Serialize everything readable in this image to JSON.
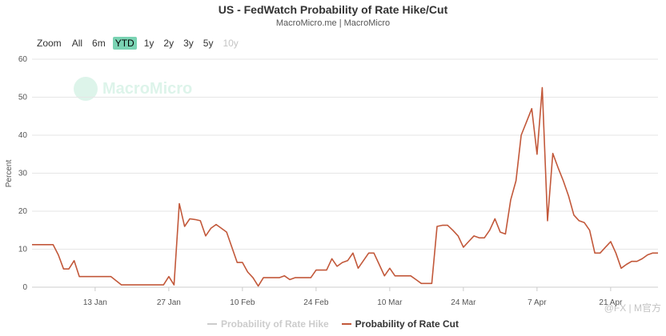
{
  "header": {
    "title": "US - FedWatch Probability of Rate Hike/Cut",
    "subtitle": "MacroMicro.me | MacroMicro"
  },
  "range_selector": {
    "label": "Zoom",
    "buttons": [
      {
        "label": "All",
        "state": "normal"
      },
      {
        "label": "6m",
        "state": "normal"
      },
      {
        "label": "YTD",
        "state": "selected"
      },
      {
        "label": "1y",
        "state": "normal"
      },
      {
        "label": "2y",
        "state": "normal"
      },
      {
        "label": "3y",
        "state": "normal"
      },
      {
        "label": "5y",
        "state": "normal"
      },
      {
        "label": "10y",
        "state": "disabled"
      }
    ]
  },
  "watermark": {
    "logo_text": "MacroMicro",
    "corner_text": "@FX | M官方"
  },
  "colors": {
    "cut_series": "#c2583a",
    "hike_series": "#cccccc",
    "selected_button": "#7ad3b3",
    "grid": "#e6e6e6"
  },
  "chart_data": {
    "type": "line",
    "title": "US - FedWatch Probability of Rate Hike/Cut",
    "subtitle": "MacroMicro.me | MacroMicro",
    "ylabel": "Percent",
    "xlabel": "",
    "ylim": [
      0,
      60
    ],
    "y_ticks": [
      0,
      10,
      20,
      30,
      40,
      50,
      60
    ],
    "x_ticks": [
      "13 Jan",
      "27 Jan",
      "10 Feb",
      "24 Feb",
      "10 Mar",
      "24 Mar",
      "7 Apr",
      "21 Apr"
    ],
    "x_tick_days": [
      13,
      27,
      41,
      55,
      69,
      83,
      97,
      111
    ],
    "x_range_days": [
      1,
      120
    ],
    "x_day_epoch": "Day 1 = 1 Jan",
    "grid": true,
    "legend_position": "bottom-center",
    "series": [
      {
        "name": "Probability of Rate Hike",
        "visible": false,
        "x_day": [],
        "values": []
      },
      {
        "name": "Probability of Rate Cut",
        "visible": true,
        "x_day": [
          1,
          2,
          3,
          4,
          5,
          6,
          7,
          8,
          9,
          10,
          12,
          14,
          16,
          18,
          20,
          22,
          24,
          26,
          27,
          28,
          29,
          30,
          31,
          32,
          33,
          34,
          35,
          36,
          37,
          38,
          39,
          40,
          41,
          42,
          43,
          44,
          45,
          46,
          47,
          48,
          49,
          50,
          51,
          52,
          53,
          54,
          55,
          56,
          57,
          58,
          59,
          60,
          61,
          62,
          63,
          64,
          65,
          66,
          67,
          68,
          69,
          70,
          71,
          72,
          73,
          74,
          75,
          76,
          77,
          78,
          79,
          80,
          81,
          82,
          83,
          84,
          85,
          86,
          87,
          88,
          89,
          90,
          91,
          92,
          93,
          94,
          95,
          96,
          97,
          98,
          99,
          100,
          101,
          102,
          103,
          104,
          105,
          106,
          107,
          108,
          109,
          110,
          111,
          112,
          113,
          114,
          115,
          116,
          117,
          118,
          119,
          120
        ],
        "values": [
          11.2,
          11.2,
          11.2,
          11.2,
          11.2,
          8.5,
          4.8,
          4.8,
          7.0,
          2.8,
          2.8,
          2.8,
          2.8,
          0.6,
          0.6,
          0.6,
          0.6,
          0.6,
          2.8,
          0.6,
          22.0,
          16.0,
          18.0,
          17.8,
          17.5,
          13.5,
          15.5,
          16.5,
          15.5,
          14.5,
          10.5,
          6.5,
          6.5,
          4.0,
          2.5,
          0.3,
          2.5,
          2.5,
          2.5,
          2.5,
          3.0,
          2.0,
          2.5,
          2.5,
          2.5,
          2.5,
          4.5,
          4.5,
          4.5,
          7.5,
          5.5,
          6.5,
          7.0,
          9.0,
          5.0,
          7.0,
          9.0,
          9.0,
          6.0,
          3.0,
          5.0,
          3.0,
          3.0,
          3.0,
          3.0,
          2.0,
          1.0,
          1.0,
          1.0,
          16.0,
          16.3,
          16.3,
          15.0,
          13.5,
          10.5,
          12.0,
          13.5,
          13.0,
          13.0,
          15.0,
          18.0,
          14.5,
          14.0,
          23.0,
          28.0,
          40.0,
          43.5,
          47.0,
          35.0,
          52.5,
          17.5,
          35.2,
          31.5,
          28.0,
          24.0,
          19.0,
          17.5,
          17.0,
          15.0,
          9.0,
          9.0,
          10.5,
          12.0,
          9.0,
          5.0,
          6.0,
          6.8,
          6.8,
          7.5,
          8.5,
          9.0,
          9.0
        ]
      }
    ]
  }
}
